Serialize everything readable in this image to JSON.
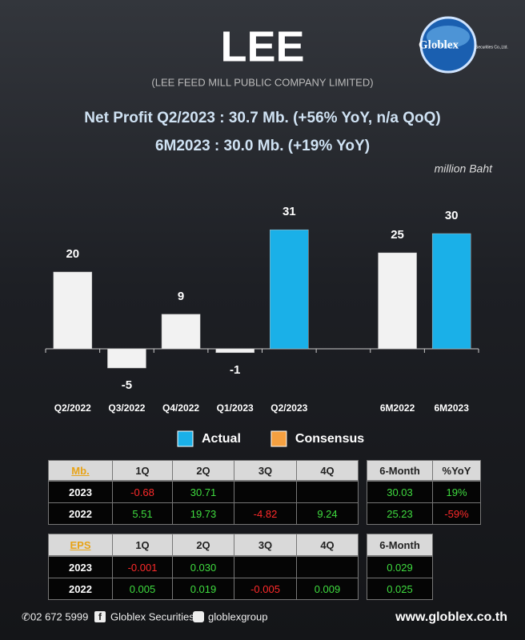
{
  "header": {
    "title": "LEE",
    "company": "(LEE FEED MILL PUBLIC COMPANY LIMITED)",
    "logo": "Globlex",
    "logo_sub": "Securities Co.,Ltd."
  },
  "headline": [
    "Net Profit  Q2/2023 : 30.7 Mb. (+56% YoY, n/a QoQ)",
    "6M2023 : 30.0 Mb. (+19% YoY)"
  ],
  "chart_data": {
    "type": "bar",
    "unit": "million Baht",
    "categories": [
      "Q2/2022",
      "Q3/2022",
      "Q4/2022",
      "Q1/2023",
      "Q2/2023",
      null,
      "6M2022",
      "6M2023"
    ],
    "values": [
      20,
      -5,
      9,
      -1,
      31,
      null,
      25,
      30
    ],
    "colors": [
      "#f2f2f2",
      "#f2f2f2",
      "#f2f2f2",
      "#f2f2f2",
      "#1ab0e8",
      null,
      "#f2f2f2",
      "#1ab0e8"
    ],
    "ylim": [
      -10,
      35
    ],
    "legend": [
      {
        "name": "Actual",
        "color": "#1ab0e8"
      },
      {
        "name": "Consensus",
        "color": "#f5a040"
      }
    ]
  },
  "tables": [
    {
      "columns": [
        "Mb.",
        "1Q",
        "2Q",
        "3Q",
        "4Q"
      ],
      "rows": [
        [
          "2023",
          "-0.68",
          "30.71",
          null,
          null
        ],
        [
          "2022",
          "5.51",
          "19.73",
          "-4.82",
          "9.24"
        ]
      ],
      "side_columns": [
        "6-Month",
        "%YoY"
      ],
      "side_rows": [
        [
          "30.03",
          "19%"
        ],
        [
          "25.23",
          "-59%"
        ]
      ]
    },
    {
      "columns": [
        "EPS",
        "1Q",
        "2Q",
        "3Q",
        "4Q"
      ],
      "rows": [
        [
          "2023",
          "-0.001",
          "0.030",
          null,
          null
        ],
        [
          "2022",
          "0.005",
          "0.019",
          "-0.005",
          "0.009"
        ]
      ],
      "side_columns": [
        "6-Month"
      ],
      "side_rows": [
        [
          "0.029"
        ],
        [
          "0.025"
        ]
      ]
    }
  ],
  "footer": {
    "phone": "02 672 5999",
    "facebook": "Globlex Securities",
    "telegram": "globlexgroup",
    "website": "www.globlex.co.th"
  }
}
